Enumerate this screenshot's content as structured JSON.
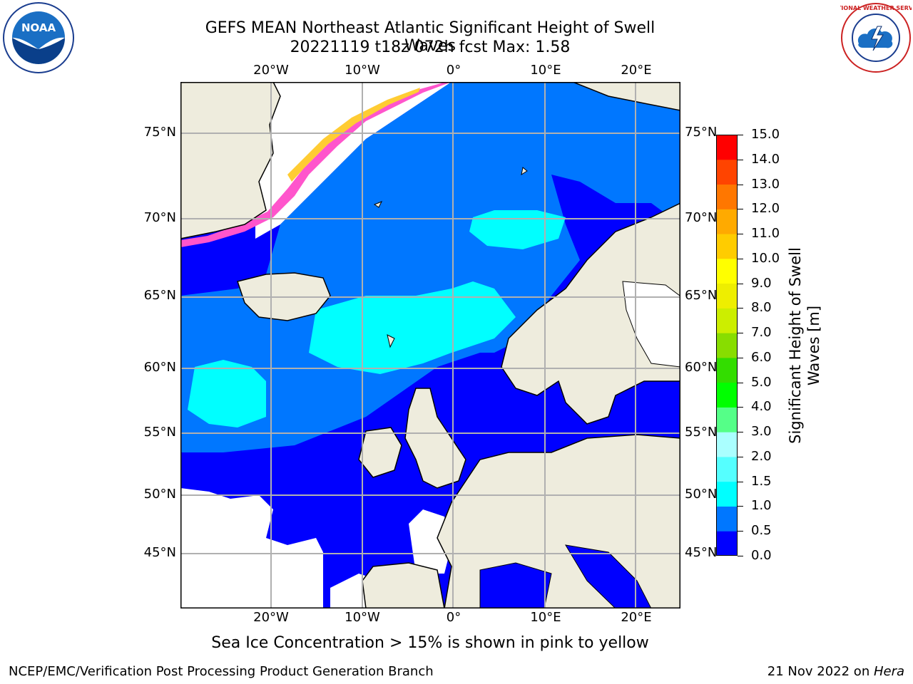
{
  "header": {
    "title": "GEFS MEAN Northeast Atlantic Significant Height of Swell Waves",
    "subtitle": "20221119 t18z 072h fcst   Max: 1.58"
  },
  "map": {
    "lon_labels": [
      "20°W",
      "10°W",
      "0°",
      "10°E",
      "20°E"
    ],
    "lon_values": [
      -20,
      -10,
      0,
      10,
      20
    ],
    "lat_labels": [
      "75°N",
      "70°N",
      "65°N",
      "60°N",
      "55°N",
      "50°N",
      "45°N"
    ],
    "lat_values": [
      75,
      70,
      65,
      60,
      55,
      50,
      45
    ],
    "land_color": "#eeecdd",
    "grid_color": "#b0b0b0"
  },
  "colorbar": {
    "label": "Significant Height of Swell Waves [m]",
    "ticks": [
      "15.0",
      "14.0",
      "13.0",
      "12.0",
      "11.0",
      "10.0",
      "9.0",
      "8.0",
      "7.0",
      "6.0",
      "5.0",
      "4.0",
      "3.0",
      "2.0",
      "1.5",
      "1.0",
      "0.5",
      "0.0"
    ],
    "colors": [
      "#0000ff",
      "#0077ff",
      "#00ffff",
      "#55ffff",
      "#aaffff",
      "#55ff88",
      "#00ff00",
      "#33dd00",
      "#88dd00",
      "#ccee00",
      "#eeee00",
      "#ffff00",
      "#ffcc00",
      "#ffaa00",
      "#ff7700",
      "#ff4400",
      "#ff0000"
    ]
  },
  "note": "Sea Ice Concentration > 15% is shown in pink to yellow",
  "footer": {
    "left": "NCEP/EMC/Verification Post Processing Product Generation Branch",
    "right_prefix": "21 Nov 2022 on ",
    "right_machine": "Hera"
  },
  "logos": {
    "noaa": "NOAA",
    "nws": "NATIONAL WEATHER SERVICE"
  }
}
